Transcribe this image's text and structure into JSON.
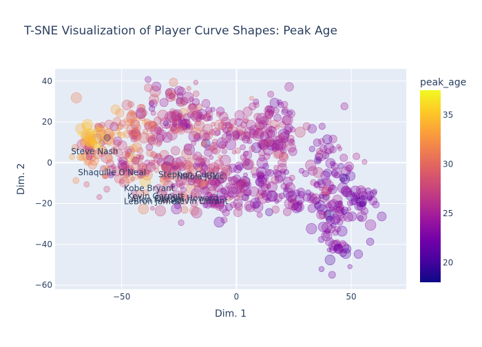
{
  "chart_data": {
    "type": "scatter",
    "title": "T-SNE Visualization of Player Curve Shapes: Peak Age",
    "xlabel": "Dim. 1",
    "ylabel": "Dim. 2",
    "xlim": [
      -79,
      74
    ],
    "ylim": [
      -62,
      46
    ],
    "x_ticks": [
      -50,
      0,
      50
    ],
    "y_ticks": [
      -60,
      -40,
      -20,
      0,
      20,
      40
    ],
    "grid": true,
    "colorbar": {
      "title": "peak_age",
      "range": [
        18,
        37.5
      ],
      "ticks": [
        20,
        25,
        30,
        35
      ],
      "colorscale": "plasma"
    },
    "clusters": [
      {
        "name": "c1",
        "x": -60,
        "y": 8,
        "sx": 6,
        "sy": 8,
        "n": 60,
        "ageMean": 31,
        "ageSd": 2.5
      },
      {
        "name": "c2",
        "x": -45,
        "y": 20,
        "sx": 7,
        "sy": 5,
        "n": 45,
        "ageMean": 30,
        "ageSd": 2.5
      },
      {
        "name": "c3",
        "x": -42,
        "y": 0,
        "sx": 9,
        "sy": 8,
        "n": 90,
        "ageMean": 28.5,
        "ageSd": 2.5
      },
      {
        "name": "c4",
        "x": -22,
        "y": 22,
        "sx": 9,
        "sy": 9,
        "n": 110,
        "ageMean": 26.5,
        "ageSd": 2
      },
      {
        "name": "c5",
        "x": -20,
        "y": -8,
        "sx": 10,
        "sy": 8,
        "n": 120,
        "ageMean": 27,
        "ageSd": 2
      },
      {
        "name": "c6",
        "x": -3,
        "y": 12,
        "sx": 7,
        "sy": 7,
        "n": 50,
        "ageMean": 26,
        "ageSd": 1.5
      },
      {
        "name": "c7",
        "x": 15,
        "y": 15,
        "sx": 7,
        "sy": 10,
        "n": 110,
        "ageMean": 25.5,
        "ageSd": 1.5
      },
      {
        "name": "c8",
        "x": 12,
        "y": -12,
        "sx": 14,
        "sy": 6,
        "n": 120,
        "ageMean": 24.5,
        "ageSd": 1.5
      },
      {
        "name": "c9",
        "x": 42,
        "y": 2,
        "sx": 6,
        "sy": 8,
        "n": 45,
        "ageMean": 24,
        "ageSd": 1.5
      },
      {
        "name": "c10",
        "x": 45,
        "y": -20,
        "sx": 8,
        "sy": 5,
        "n": 60,
        "ageMean": 23.5,
        "ageSd": 1.5
      },
      {
        "name": "c11",
        "x": 43,
        "y": -38,
        "sx": 4,
        "sy": 7,
        "n": 40,
        "ageMean": 23,
        "ageSd": 1.2
      },
      {
        "name": "c12",
        "x": 56,
        "y": -18,
        "sx": 3,
        "sy": 3,
        "n": 18,
        "ageMean": 23,
        "ageSd": 1
      },
      {
        "name": "c13",
        "x": -64,
        "y": 12,
        "sx": 2,
        "sy": 2,
        "n": 14,
        "ageMean": 35,
        "ageSd": 1
      },
      {
        "name": "c14",
        "x": -4,
        "y": -20,
        "sx": 4,
        "sy": 3,
        "n": 20,
        "ageMean": 25,
        "ageSd": 1.5
      }
    ],
    "annotations": [
      {
        "label": "Steve Nash",
        "x": -72,
        "y": 5.5
      },
      {
        "label": "Shaquille O'Neal",
        "x": -69,
        "y": -4.8
      },
      {
        "label": "Stephen Curry",
        "x": -34,
        "y": -5.8
      },
      {
        "label": "Nikola Jokic",
        "x": -26,
        "y": -6.8
      },
      {
        "label": "Kobe Bryant",
        "x": -49,
        "y": -12.5
      },
      {
        "label": "Kevin Garnett",
        "x": -47.5,
        "y": -16.5
      },
      {
        "label": "Dwight Howard",
        "x": -35.5,
        "y": -17.5
      },
      {
        "label": "Allen Iverson",
        "x": -46,
        "y": -18.2
      },
      {
        "label": "LeBron James",
        "x": -49,
        "y": -19
      },
      {
        "label": "Kevin Durant",
        "x": -27,
        "y": -18.8
      }
    ]
  }
}
